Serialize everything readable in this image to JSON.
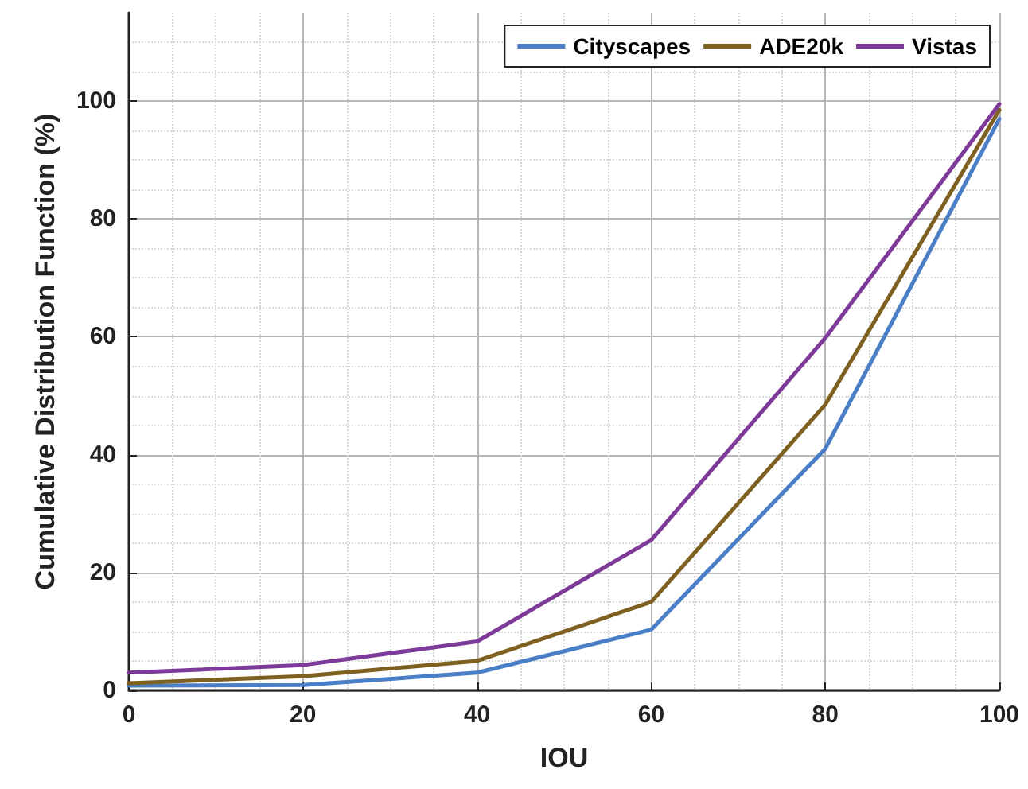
{
  "chart_data": {
    "type": "line",
    "xlabel": "IOU",
    "ylabel": "Cumulative Distribution Function (%)",
    "x": [
      0,
      20,
      40,
      60,
      80,
      100
    ],
    "series": [
      {
        "name": "Cityscapes",
        "color": "#4a7ec6",
        "values": [
          0.8,
          0.9,
          3,
          10.3,
          41,
          97
        ]
      },
      {
        "name": "ADE20k",
        "color": "#7e6020",
        "values": [
          1.2,
          2.4,
          5,
          15,
          48.5,
          98.5
        ]
      },
      {
        "name": "Vistas",
        "color": "#7e3a98",
        "values": [
          3,
          4.3,
          8.3,
          25.5,
          59.8,
          99.5
        ]
      }
    ],
    "xlim": [
      0,
      100
    ],
    "xticks": [
      0,
      20,
      40,
      60,
      80,
      100
    ],
    "ylim": [
      0,
      115
    ],
    "yticks": [
      0,
      20,
      40,
      60,
      80,
      100
    ],
    "grid": true,
    "legend": "top right",
    "marker": "none",
    "line_style": "solid"
  }
}
